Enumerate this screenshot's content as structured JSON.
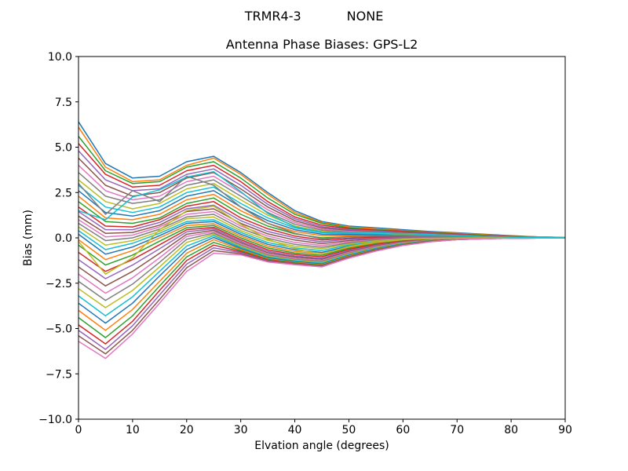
{
  "figure": {
    "suptitle_left": "TRMR4-3",
    "suptitle_right": "NONE",
    "title": "Antenna Phase Biases: GPS-L2",
    "xlabel": "Elvation angle (degrees)",
    "ylabel": "Bias (mm)",
    "background": "#ffffff",
    "axis_color": "#000000"
  },
  "chart_data": {
    "type": "line",
    "title": "Antenna Phase Biases: GPS-L2",
    "suptitle": "TRMR4-3         NONE",
    "xlabel": "Elvation angle (degrees)",
    "ylabel": "Bias (mm)",
    "xlim": [
      0,
      90
    ],
    "ylim": [
      -10,
      10
    ],
    "xticks": [
      0,
      10,
      20,
      30,
      40,
      50,
      60,
      70,
      80,
      90
    ],
    "yticks": [
      -10,
      -7.5,
      -5,
      -2.5,
      0,
      2.5,
      5,
      7.5,
      10
    ],
    "ytick_labels": [
      "−10.0",
      "−7.5",
      "−5.0",
      "−2.5",
      "0.0",
      "2.5",
      "5.0",
      "7.5",
      "10.0"
    ],
    "grid": false,
    "legend": "none",
    "palette": [
      "#1f77b4",
      "#ff7f0e",
      "#2ca02c",
      "#d62728",
      "#9467bd",
      "#8c564b",
      "#e377c2",
      "#7f7f7f",
      "#bcbd22",
      "#17becf"
    ],
    "x": [
      0,
      5,
      10,
      15,
      20,
      25,
      30,
      35,
      40,
      45,
      50,
      55,
      60,
      65,
      70,
      75,
      80,
      85,
      90
    ],
    "series": [
      {
        "name": "line-01",
        "values": [
          6.4,
          4.1,
          3.3,
          3.4,
          4.2,
          4.5,
          3.6,
          2.5,
          1.5,
          0.9,
          0.65,
          0.55,
          0.45,
          0.35,
          0.28,
          0.2,
          0.12,
          0.05,
          0.02
        ]
      },
      {
        "name": "line-02",
        "values": [
          6.1,
          3.9,
          3.1,
          3.2,
          4.0,
          4.4,
          3.5,
          2.4,
          1.4,
          0.85,
          0.6,
          0.5,
          0.4,
          0.32,
          0.25,
          0.18,
          0.1,
          0.05,
          0.02
        ]
      },
      {
        "name": "line-03",
        "values": [
          5.6,
          3.7,
          3.0,
          3.1,
          3.9,
          4.2,
          3.3,
          2.2,
          1.3,
          0.8,
          0.55,
          0.45,
          0.38,
          0.3,
          0.22,
          0.15,
          0.09,
          0.04,
          0.01
        ]
      },
      {
        "name": "line-04",
        "values": [
          5.2,
          3.5,
          2.8,
          2.9,
          3.7,
          4.0,
          3.1,
          2.0,
          1.15,
          0.7,
          0.5,
          0.42,
          0.35,
          0.27,
          0.2,
          0.13,
          0.08,
          0.03,
          0.01
        ]
      },
      {
        "name": "line-05",
        "values": [
          4.8,
          3.2,
          2.6,
          2.7,
          3.5,
          3.8,
          2.9,
          1.85,
          1.05,
          0.62,
          0.45,
          0.38,
          0.3,
          0.24,
          0.17,
          0.11,
          0.06,
          0.03,
          0.01
        ]
      },
      {
        "name": "line-06",
        "values": [
          4.4,
          2.9,
          2.3,
          2.5,
          3.3,
          3.6,
          2.7,
          1.7,
          0.95,
          0.55,
          0.4,
          0.33,
          0.27,
          0.2,
          0.15,
          0.1,
          0.05,
          0.02,
          0.0
        ]
      },
      {
        "name": "line-07",
        "values": [
          4.0,
          2.6,
          2.1,
          2.3,
          3.1,
          3.4,
          2.5,
          1.55,
          0.85,
          0.48,
          0.36,
          0.3,
          0.24,
          0.18,
          0.13,
          0.08,
          0.04,
          0.02,
          0.0
        ]
      },
      {
        "name": "line-08",
        "values": [
          3.6,
          2.3,
          1.9,
          2.1,
          2.9,
          3.2,
          2.3,
          1.4,
          0.75,
          0.42,
          0.32,
          0.26,
          0.21,
          0.16,
          0.11,
          0.07,
          0.04,
          0.01,
          0.0
        ]
      },
      {
        "name": "line-09",
        "values": [
          3.2,
          2.0,
          1.6,
          1.9,
          2.7,
          3.0,
          2.1,
          1.25,
          0.65,
          0.35,
          0.28,
          0.23,
          0.18,
          0.13,
          0.09,
          0.06,
          0.03,
          0.01,
          0.0
        ]
      },
      {
        "name": "line-10",
        "values": [
          2.9,
          1.7,
          1.4,
          1.7,
          2.5,
          2.8,
          1.9,
          1.1,
          0.55,
          0.28,
          0.24,
          0.2,
          0.15,
          0.11,
          0.08,
          0.05,
          0.02,
          0.01,
          0.0
        ]
      },
      {
        "name": "line-11",
        "values": [
          2.6,
          1.4,
          1.2,
          1.5,
          2.3,
          2.6,
          1.7,
          0.95,
          0.45,
          0.2,
          0.18,
          0.16,
          0.12,
          0.09,
          0.06,
          0.04,
          0.02,
          0.0,
          0.0
        ]
      },
      {
        "name": "line-12",
        "values": [
          2.3,
          1.1,
          1.0,
          1.3,
          2.1,
          2.4,
          1.5,
          0.8,
          0.35,
          0.12,
          0.12,
          0.12,
          0.1,
          0.07,
          0.05,
          0.03,
          0.01,
          0.0,
          0.0
        ]
      },
      {
        "name": "line-13",
        "values": [
          2.0,
          0.9,
          0.8,
          1.1,
          1.9,
          2.2,
          1.3,
          0.65,
          0.22,
          0.0,
          0.05,
          0.08,
          0.07,
          0.05,
          0.03,
          0.02,
          0.01,
          0.0,
          0.0
        ]
      },
      {
        "name": "line-14",
        "values": [
          1.7,
          0.65,
          0.6,
          1.0,
          1.75,
          2.0,
          1.1,
          0.5,
          0.1,
          -0.12,
          -0.02,
          0.03,
          0.04,
          0.03,
          0.02,
          0.01,
          0.0,
          0.0,
          0.0
        ]
      },
      {
        "name": "line-15",
        "values": [
          1.45,
          0.45,
          0.45,
          0.85,
          1.6,
          1.8,
          0.95,
          0.35,
          0.0,
          -0.22,
          -0.08,
          -0.02,
          0.01,
          0.01,
          0.0,
          0.0,
          0.0,
          0.0,
          0.0
        ]
      },
      {
        "name": "line-16",
        "values": [
          1.2,
          0.25,
          0.3,
          0.7,
          1.45,
          1.6,
          0.8,
          0.22,
          -0.12,
          -0.32,
          -0.15,
          -0.06,
          -0.02,
          0.0,
          0.0,
          0.0,
          0.0,
          0.0,
          0.0
        ]
      },
      {
        "name": "line-17",
        "values": [
          1.0,
          0.05,
          0.15,
          0.6,
          1.3,
          1.45,
          0.65,
          0.1,
          -0.25,
          -0.42,
          -0.22,
          -0.1,
          -0.04,
          -0.01,
          0.0,
          0.0,
          0.0,
          0.0,
          0.0
        ]
      },
      {
        "name": "line-18",
        "values": [
          0.8,
          -0.15,
          0.0,
          0.48,
          1.15,
          1.3,
          0.52,
          -0.02,
          -0.36,
          -0.52,
          -0.28,
          -0.13,
          -0.06,
          -0.02,
          -0.01,
          0.0,
          0.0,
          0.0,
          0.0
        ]
      },
      {
        "name": "line-19",
        "values": [
          0.6,
          -0.4,
          -0.15,
          0.36,
          1.05,
          1.15,
          0.4,
          -0.14,
          -0.46,
          -0.6,
          -0.34,
          -0.17,
          -0.08,
          -0.03,
          -0.01,
          0.0,
          0.0,
          0.0,
          0.0
        ]
      },
      {
        "name": "line-20",
        "values": [
          0.4,
          -0.65,
          -0.3,
          0.25,
          0.9,
          1.0,
          0.3,
          -0.26,
          -0.56,
          -0.7,
          -0.4,
          -0.21,
          -0.1,
          -0.04,
          -0.02,
          -0.01,
          0.0,
          0.0,
          0.0
        ]
      },
      {
        "name": "line-21",
        "values": [
          0.2,
          -0.9,
          -0.5,
          0.12,
          0.8,
          0.9,
          0.2,
          -0.36,
          -0.66,
          -0.8,
          -0.46,
          -0.25,
          -0.12,
          -0.05,
          -0.02,
          -0.01,
          0.0,
          0.0,
          0.0
        ]
      },
      {
        "name": "line-22",
        "values": [
          -0.1,
          -1.2,
          -0.7,
          0.0,
          0.68,
          0.78,
          0.1,
          -0.46,
          -0.75,
          -0.88,
          -0.52,
          -0.29,
          -0.15,
          -0.07,
          -0.03,
          -0.01,
          0.0,
          0.0,
          0.0
        ]
      },
      {
        "name": "line-23",
        "values": [
          -0.4,
          -1.5,
          -0.95,
          -0.18,
          0.56,
          0.68,
          0.0,
          -0.56,
          -0.84,
          -0.96,
          -0.58,
          -0.33,
          -0.17,
          -0.08,
          -0.03,
          -0.01,
          0.0,
          0.0,
          0.0
        ]
      },
      {
        "name": "line-24",
        "values": [
          -0.8,
          -1.85,
          -1.2,
          -0.38,
          0.45,
          0.58,
          -0.1,
          -0.66,
          -0.92,
          -1.04,
          -0.64,
          -0.37,
          -0.19,
          -0.09,
          -0.04,
          -0.02,
          -0.01,
          0.0,
          0.0
        ]
      },
      {
        "name": "line-25",
        "values": [
          -1.2,
          -2.25,
          -1.5,
          -0.6,
          0.33,
          0.5,
          -0.18,
          -0.74,
          -1.0,
          -1.12,
          -0.7,
          -0.41,
          -0.22,
          -0.1,
          -0.05,
          -0.02,
          -0.01,
          0.0,
          0.0
        ]
      },
      {
        "name": "line-26",
        "values": [
          -1.6,
          -2.65,
          -1.85,
          -0.85,
          0.2,
          0.42,
          -0.26,
          -0.82,
          -1.06,
          -1.18,
          -0.75,
          -0.45,
          -0.24,
          -0.12,
          -0.05,
          -0.02,
          -0.01,
          0.0,
          0.0
        ]
      },
      {
        "name": "line-27",
        "values": [
          -2.0,
          -3.05,
          -2.2,
          -1.1,
          0.08,
          0.34,
          -0.33,
          -0.89,
          -1.12,
          -1.25,
          -0.8,
          -0.48,
          -0.26,
          -0.13,
          -0.06,
          -0.03,
          -0.01,
          0.0,
          0.0
        ]
      },
      {
        "name": "line-28",
        "values": [
          -2.4,
          -3.45,
          -2.55,
          -1.35,
          -0.08,
          0.27,
          -0.4,
          -0.95,
          -1.18,
          -1.3,
          -0.85,
          -0.52,
          -0.28,
          -0.14,
          -0.06,
          -0.03,
          -0.01,
          0.0,
          0.0
        ]
      },
      {
        "name": "line-29",
        "values": [
          -2.8,
          -3.85,
          -2.9,
          -1.6,
          -0.25,
          0.2,
          -0.46,
          -1.0,
          -1.23,
          -1.35,
          -0.89,
          -0.55,
          -0.3,
          -0.15,
          -0.07,
          -0.03,
          -0.01,
          0.0,
          0.0
        ]
      },
      {
        "name": "line-30",
        "values": [
          -3.2,
          -4.3,
          -3.25,
          -1.85,
          -0.45,
          0.12,
          -0.52,
          -1.05,
          -1.27,
          -1.4,
          -0.93,
          -0.58,
          -0.32,
          -0.16,
          -0.07,
          -0.03,
          -0.01,
          0.0,
          0.0
        ]
      },
      {
        "name": "line-31",
        "values": [
          -3.6,
          -4.7,
          -3.6,
          -2.1,
          -0.65,
          0.02,
          -0.58,
          -1.1,
          -1.31,
          -1.44,
          -0.97,
          -0.61,
          -0.34,
          -0.17,
          -0.08,
          -0.04,
          -0.02,
          -0.01,
          0.0
        ]
      },
      {
        "name": "line-32",
        "values": [
          -4.0,
          -5.1,
          -3.95,
          -2.4,
          -0.85,
          -0.1,
          -0.64,
          -1.15,
          -1.35,
          -1.48,
          -1.0,
          -0.64,
          -0.36,
          -0.18,
          -0.08,
          -0.04,
          -0.02,
          -0.01,
          0.0
        ]
      },
      {
        "name": "line-33",
        "values": [
          -4.4,
          -5.5,
          -4.3,
          -2.65,
          -1.05,
          -0.25,
          -0.7,
          -1.19,
          -1.38,
          -1.51,
          -1.03,
          -0.66,
          -0.37,
          -0.19,
          -0.09,
          -0.04,
          -0.02,
          -0.01,
          0.0
        ]
      },
      {
        "name": "line-34",
        "values": [
          -4.8,
          -5.85,
          -4.6,
          -2.9,
          -1.25,
          -0.4,
          -0.76,
          -1.23,
          -1.41,
          -1.54,
          -1.06,
          -0.68,
          -0.39,
          -0.2,
          -0.09,
          -0.04,
          -0.02,
          -0.01,
          0.0
        ]
      },
      {
        "name": "line-35",
        "values": [
          -5.1,
          -6.15,
          -4.85,
          -3.15,
          -1.45,
          -0.55,
          -0.82,
          -1.27,
          -1.44,
          -1.56,
          -1.08,
          -0.7,
          -0.4,
          -0.21,
          -0.1,
          -0.05,
          -0.02,
          -0.01,
          0.0
        ]
      },
      {
        "name": "line-36",
        "values": [
          -5.4,
          -6.4,
          -5.1,
          -3.4,
          -1.65,
          -0.7,
          -0.88,
          -1.3,
          -1.46,
          -1.58,
          -1.1,
          -0.72,
          -0.41,
          -0.21,
          -0.1,
          -0.05,
          -0.02,
          -0.01,
          0.0
        ]
      },
      {
        "name": "line-37",
        "values": [
          -5.7,
          -6.65,
          -5.3,
          -3.6,
          -1.85,
          -0.85,
          -0.94,
          -1.33,
          -1.48,
          -1.6,
          -1.12,
          -0.73,
          -0.42,
          -0.22,
          -0.1,
          -0.05,
          -0.02,
          -0.01,
          0.0
        ]
      },
      {
        "name": "line-38",
        "values": [
          3.0,
          1.3,
          2.6,
          2.0,
          3.4,
          2.9,
          1.7,
          0.8,
          0.25,
          -0.05,
          0.05,
          0.12,
          0.1,
          0.07,
          0.05,
          0.03,
          0.01,
          0.0,
          0.0
        ]
      },
      {
        "name": "line-39",
        "values": [
          -0.2,
          -2.0,
          -1.1,
          0.45,
          1.5,
          1.75,
          0.75,
          -0.08,
          -0.6,
          -0.9,
          -0.48,
          -0.22,
          -0.1,
          -0.04,
          -0.01,
          0.0,
          0.0,
          0.0,
          0.0
        ]
      },
      {
        "name": "line-40",
        "values": [
          1.5,
          1.0,
          2.25,
          2.65,
          3.35,
          3.65,
          2.55,
          1.35,
          0.6,
          0.32,
          0.3,
          0.28,
          0.24,
          0.18,
          0.12,
          0.08,
          0.04,
          0.02,
          0.0
        ]
      }
    ]
  }
}
